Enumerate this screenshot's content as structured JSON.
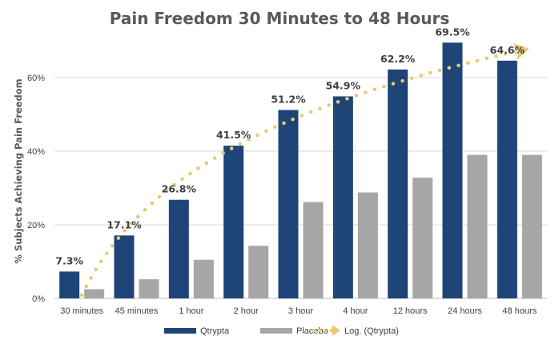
{
  "chart_data": {
    "type": "bar",
    "title": "Pain Freedom 30 Minutes to 48 Hours",
    "xlabel": "",
    "ylabel": "% Subjects Achieving Pain Freedom",
    "categories": [
      "30 minutes",
      "45 minutes",
      "1 hour",
      "2 hour",
      "3 hour",
      "4 hour",
      "12 hours",
      "24 hours",
      "48 hours"
    ],
    "series": [
      {
        "name": "Qtrypta",
        "values": [
          7.3,
          17.1,
          26.8,
          41.5,
          51.2,
          54.9,
          62.2,
          69.5,
          64.6
        ],
        "color": "#1F4477"
      },
      {
        "name": "Placebo",
        "values": [
          2.5,
          5.2,
          10.5,
          14.3,
          26.2,
          28.8,
          32.8,
          39.0,
          39.0
        ],
        "color": "#A6A6A6"
      }
    ],
    "data_labels": [
      "7.3%",
      "17.1%",
      "26.8%",
      "41.5%",
      "51.2%",
      "54.9%",
      "62.2%",
      "69.5%",
      "64.6%"
    ],
    "trendline": {
      "name": "Log. (Qtrypta)",
      "type": "logarithmic",
      "of_series": "Qtrypta",
      "color": "#E8C96E"
    },
    "ylim": [
      0,
      70
    ],
    "yticks": [
      0,
      20,
      40,
      60
    ],
    "ytick_labels": [
      "0%",
      "20%",
      "40%",
      "60%"
    ],
    "grid": true,
    "legend_position": "bottom"
  }
}
